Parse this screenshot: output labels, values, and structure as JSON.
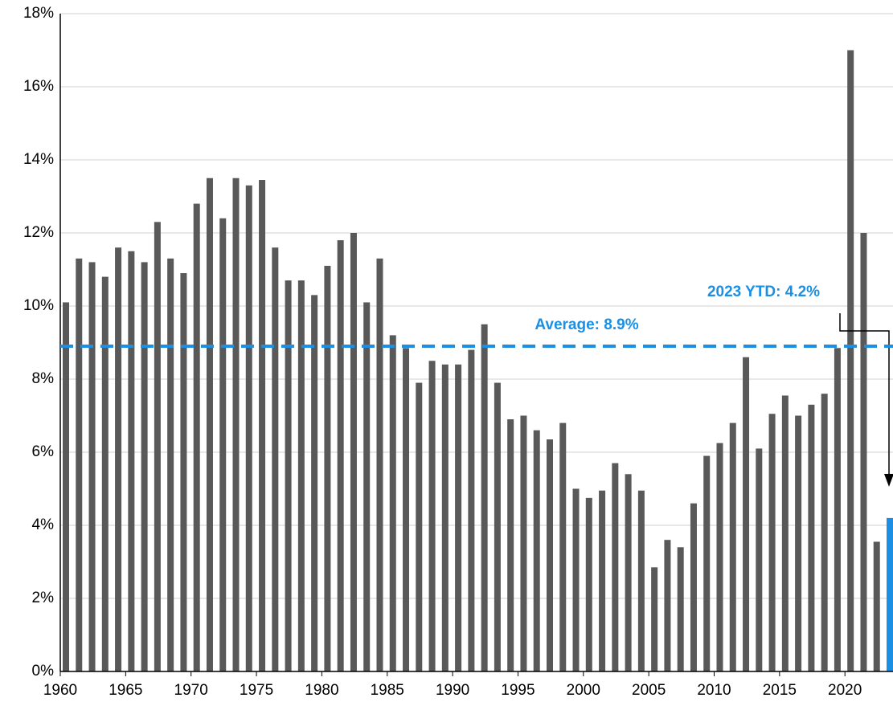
{
  "chart_data": {
    "type": "bar",
    "categories": [
      "1960",
      null,
      null,
      null,
      null,
      "1965",
      null,
      null,
      null,
      null,
      "1970",
      null,
      null,
      null,
      null,
      "1975",
      null,
      null,
      null,
      null,
      "1980",
      null,
      null,
      null,
      null,
      "1985",
      null,
      null,
      null,
      null,
      "1990",
      null,
      null,
      null,
      null,
      "1995",
      null,
      null,
      null,
      null,
      "2000",
      null,
      null,
      null,
      null,
      "2005",
      null,
      null,
      null,
      null,
      "2010",
      null,
      null,
      null,
      null,
      "2015",
      null,
      null,
      null,
      null,
      "2020",
      null,
      null,
      null
    ],
    "values": [
      10.1,
      11.3,
      11.2,
      10.8,
      11.6,
      11.5,
      11.2,
      12.3,
      11.3,
      10.9,
      12.8,
      13.5,
      12.4,
      13.5,
      13.3,
      13.45,
      11.6,
      10.7,
      10.7,
      10.3,
      11.1,
      11.8,
      12.0,
      10.1,
      11.3,
      9.2,
      8.85,
      7.9,
      8.5,
      8.4,
      8.4,
      8.8,
      9.5,
      7.9,
      6.9,
      7.0,
      6.6,
      6.35,
      6.8,
      5.0,
      4.75,
      4.95,
      5.7,
      5.4,
      4.95,
      2.85,
      3.6,
      3.4,
      4.6,
      5.9,
      6.25,
      6.8,
      8.6,
      6.1,
      7.05,
      7.55,
      7.0,
      7.3,
      7.6,
      8.85,
      17.0,
      12.0,
      3.55,
      4.2
    ],
    "colors": [
      "#595959",
      "#595959",
      "#595959",
      "#595959",
      "#595959",
      "#595959",
      "#595959",
      "#595959",
      "#595959",
      "#595959",
      "#595959",
      "#595959",
      "#595959",
      "#595959",
      "#595959",
      "#595959",
      "#595959",
      "#595959",
      "#595959",
      "#595959",
      "#595959",
      "#595959",
      "#595959",
      "#595959",
      "#595959",
      "#595959",
      "#595959",
      "#595959",
      "#595959",
      "#595959",
      "#595959",
      "#595959",
      "#595959",
      "#595959",
      "#595959",
      "#595959",
      "#595959",
      "#595959",
      "#595959",
      "#595959",
      "#595959",
      "#595959",
      "#595959",
      "#595959",
      "#595959",
      "#595959",
      "#595959",
      "#595959",
      "#595959",
      "#595959",
      "#595959",
      "#595959",
      "#595959",
      "#595959",
      "#595959",
      "#595959",
      "#595959",
      "#595959",
      "#595959",
      "#595959",
      "#595959",
      "#595959",
      "#595959",
      "#1a8fe3"
    ],
    "ylim": [
      0,
      18
    ],
    "yticks": [
      {
        "value": 0,
        "label": "0%"
      },
      {
        "value": 2,
        "label": "2%"
      },
      {
        "value": 4,
        "label": "4%"
      },
      {
        "value": 6,
        "label": "6%"
      },
      {
        "value": 8,
        "label": "8%"
      },
      {
        "value": 10,
        "label": "10%"
      },
      {
        "value": 12,
        "label": "12%"
      },
      {
        "value": 14,
        "label": "14%"
      },
      {
        "value": 16,
        "label": "16%"
      },
      {
        "value": 18,
        "label": "18%"
      }
    ],
    "grid": true,
    "average": {
      "value": 8.9,
      "label": "Average: 8.9%",
      "color": "#1a8fe3"
    },
    "annotation": "2023 YTD:  4.2%"
  }
}
